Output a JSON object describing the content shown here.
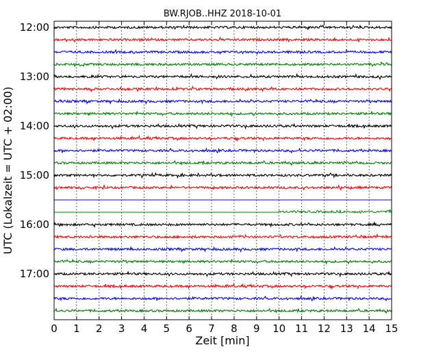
{
  "chart_data": {
    "type": "line",
    "title": "BW.RJOB..HHZ 2018-10-01",
    "xlabel": "Zeit  [min]",
    "ylabel": "UTC (Lokalzeit = UTC + 02:00)",
    "xlim": [
      0,
      15
    ],
    "x_ticks": [
      "0",
      "1",
      "2",
      "3",
      "4",
      "5",
      "6",
      "7",
      "8",
      "9",
      "10",
      "11",
      "12",
      "13",
      "14",
      "15"
    ],
    "y_ticks": [
      "12:00",
      "13:00",
      "14:00",
      "15:00",
      "16:00",
      "17:00"
    ],
    "grid": "vertical dotted",
    "series_colors": [
      "#000000",
      "#ff0000",
      "#0000ff",
      "#008000"
    ],
    "traces": [
      {
        "start": "12:00",
        "color": "#000000",
        "signal": "noise"
      },
      {
        "start": "12:15",
        "color": "#ff0000",
        "signal": "noise"
      },
      {
        "start": "12:30",
        "color": "#0000ff",
        "signal": "noise"
      },
      {
        "start": "12:45",
        "color": "#008000",
        "signal": "noise"
      },
      {
        "start": "13:00",
        "color": "#000000",
        "signal": "noise"
      },
      {
        "start": "13:15",
        "color": "#ff0000",
        "signal": "noise"
      },
      {
        "start": "13:30",
        "color": "#0000ff",
        "signal": "noise"
      },
      {
        "start": "13:45",
        "color": "#008000",
        "signal": "noise"
      },
      {
        "start": "14:00",
        "color": "#000000",
        "signal": "noise"
      },
      {
        "start": "14:15",
        "color": "#ff0000",
        "signal": "noise"
      },
      {
        "start": "14:30",
        "color": "#0000ff",
        "signal": "noise"
      },
      {
        "start": "14:45",
        "color": "#008000",
        "signal": "noise"
      },
      {
        "start": "15:00",
        "color": "#000000",
        "signal": "noise"
      },
      {
        "start": "15:15",
        "color": "#ff0000",
        "signal": "noise"
      },
      {
        "start": "15:30",
        "color": "#0000ff",
        "signal": "flat"
      },
      {
        "start": "15:45",
        "color": "#008000",
        "signal": "flat until 10 min, then noise"
      },
      {
        "start": "16:00",
        "color": "#000000",
        "signal": "noise"
      },
      {
        "start": "16:15",
        "color": "#ff0000",
        "signal": "noise"
      },
      {
        "start": "16:30",
        "color": "#0000ff",
        "signal": "noise"
      },
      {
        "start": "16:45",
        "color": "#008000",
        "signal": "noise"
      },
      {
        "start": "17:00",
        "color": "#000000",
        "signal": "noise"
      },
      {
        "start": "17:15",
        "color": "#ff0000",
        "signal": "noise"
      },
      {
        "start": "17:30",
        "color": "#0000ff",
        "signal": "noise"
      },
      {
        "start": "17:45",
        "color": "#008000",
        "signal": "noise"
      }
    ]
  }
}
